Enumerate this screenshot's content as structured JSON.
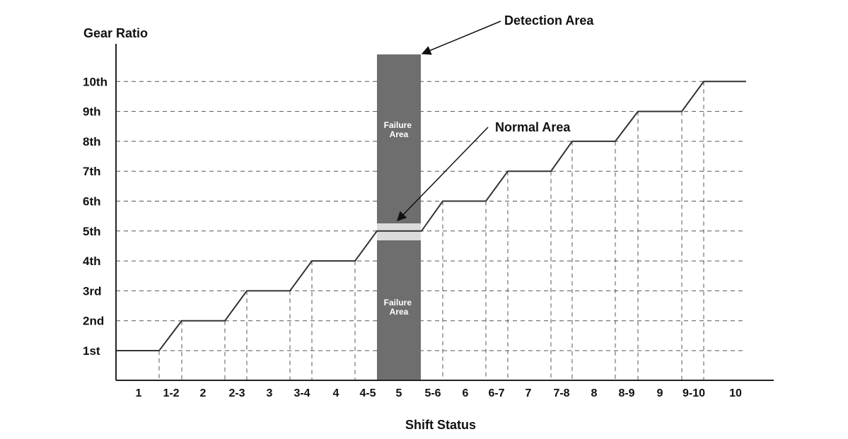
{
  "y_axis": {
    "title": "Gear Ratio",
    "ticks": [
      "1st",
      "2nd",
      "3rd",
      "4th",
      "5th",
      "6th",
      "7th",
      "8th",
      "9th",
      "10th"
    ]
  },
  "x_axis": {
    "title": "Shift Status",
    "ticks": [
      "1",
      "1-2",
      "2",
      "2-3",
      "3",
      "3-4",
      "4",
      "4-5",
      "5",
      "5-6",
      "6",
      "6-7",
      "7",
      "7-8",
      "8",
      "8-9",
      "9",
      "9-10",
      "10"
    ]
  },
  "annotations": {
    "detection_area": "Detection Area",
    "normal_area": "Normal Area",
    "failure_area_upper": [
      "Failure",
      "Area"
    ],
    "failure_area_lower": [
      "Failure",
      "Area"
    ]
  },
  "colors": {
    "line": "#333333",
    "detection_band": "#6e6e6e",
    "normal_band": "#dcdcdc",
    "grid": "#555555"
  },
  "chart_data": {
    "type": "line",
    "x": [
      "1",
      "1-2",
      "2",
      "2-3",
      "3",
      "3-4",
      "4",
      "4-5",
      "5",
      "5-6",
      "6",
      "6-7",
      "7",
      "7-8",
      "8",
      "8-9",
      "9",
      "9-10",
      "10"
    ],
    "series": [
      {
        "values": [
          1,
          1.5,
          2,
          2.5,
          3,
          3.5,
          4,
          4.5,
          5,
          5.5,
          6,
          6.5,
          7,
          7.5,
          8,
          8.5,
          9,
          9.5,
          10
        ]
      }
    ],
    "xlabel": "Shift Status",
    "ylabel": "Gear Ratio",
    "highlight": {
      "x": "5",
      "normal_value": 5
    }
  }
}
